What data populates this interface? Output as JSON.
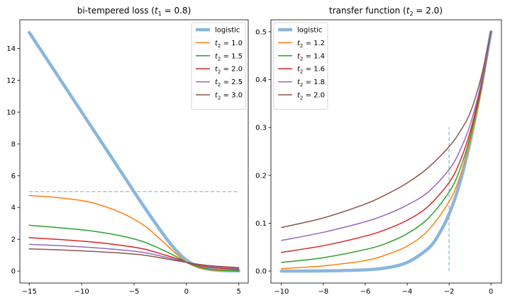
{
  "chart_data": [
    {
      "type": "line",
      "title": "bi-tempered loss",
      "title_subscript_label": "t",
      "title_subscript": "1",
      "title_value": "= 0.8",
      "xlim": [
        -15.9,
        5.9
      ],
      "ylim": [
        -0.75,
        15.8
      ],
      "xticks": [
        -15,
        -10,
        -5,
        0,
        5
      ],
      "yticks": [
        0,
        2,
        4,
        6,
        8,
        10,
        12,
        14
      ],
      "legend_position": "top-right",
      "dashed_reference": {
        "y": 5,
        "x_from": -15,
        "x_to": 5,
        "color": "#1f77b4"
      },
      "series": [
        {
          "name": "logistic",
          "color": "#8ab6dc",
          "x": [
            -15,
            -12,
            -9,
            -6,
            -4,
            -2,
            -1,
            0,
            1,
            2,
            3,
            4,
            5
          ],
          "y": [
            15.0,
            12.0,
            9.0,
            6.0,
            4.0,
            2.13,
            1.31,
            0.69,
            0.31,
            0.13,
            0.05,
            0.02,
            0.01
          ]
        },
        {
          "name": "t2 = 1.0",
          "label": "1.0",
          "color": "#ff7f0e",
          "x": [
            -15,
            -12,
            -9,
            -6,
            -4,
            -3,
            -2,
            -1,
            0,
            1,
            2,
            3,
            5
          ],
          "y": [
            4.75,
            4.6,
            4.3,
            3.6,
            2.85,
            2.3,
            1.7,
            1.1,
            0.55,
            0.25,
            0.1,
            0.04,
            0.0
          ]
        },
        {
          "name": "t2 = 1.5",
          "label": "1.5",
          "color": "#2ca02c",
          "x": [
            -15,
            -12,
            -9,
            -6,
            -4,
            -2,
            -1,
            0,
            1,
            2,
            3,
            5
          ],
          "y": [
            2.88,
            2.72,
            2.52,
            2.18,
            1.82,
            1.25,
            0.92,
            0.55,
            0.3,
            0.15,
            0.07,
            0.02
          ]
        },
        {
          "name": "t2 = 2.0",
          "label": "2.0",
          "color": "#d62728",
          "x": [
            -15,
            -12,
            -9,
            -6,
            -4,
            -2,
            -1,
            0,
            1,
            2,
            3,
            5
          ],
          "y": [
            2.1,
            1.98,
            1.83,
            1.6,
            1.38,
            1.0,
            0.8,
            0.55,
            0.38,
            0.26,
            0.19,
            0.1
          ]
        },
        {
          "name": "t2 = 2.5",
          "label": "2.5",
          "color": "#9467bd",
          "x": [
            -15,
            -12,
            -9,
            -6,
            -4,
            -2,
            -1,
            0,
            1,
            2,
            3,
            5
          ],
          "y": [
            1.68,
            1.6,
            1.48,
            1.32,
            1.16,
            0.88,
            0.72,
            0.55,
            0.42,
            0.32,
            0.26,
            0.16
          ]
        },
        {
          "name": "t2 = 3.0",
          "label": "3.0",
          "color": "#8c564b",
          "x": [
            -15,
            -12,
            -9,
            -6,
            -4,
            -2,
            -1,
            0,
            1,
            2,
            3,
            5
          ],
          "y": [
            1.4,
            1.33,
            1.24,
            1.12,
            1.0,
            0.78,
            0.66,
            0.55,
            0.44,
            0.36,
            0.3,
            0.22
          ]
        }
      ]
    },
    {
      "type": "line",
      "title": "transfer function",
      "title_subscript_label": "t",
      "title_subscript": "2",
      "title_value": "= 2.0",
      "xlim": [
        -10.5,
        0.5
      ],
      "ylim": [
        -0.025,
        0.525
      ],
      "xticks": [
        -10,
        -8,
        -6,
        -4,
        -2,
        0
      ],
      "yticks": [
        0.0,
        0.1,
        0.2,
        0.3,
        0.4,
        0.5
      ],
      "legend_position": "top-left",
      "dashed_reference": {
        "x": -2,
        "y_from": 0,
        "y_to": 0.3,
        "color": "#1f77b4"
      },
      "series": [
        {
          "name": "logistic",
          "color": "#8ab6dc",
          "x": [
            -10,
            -8,
            -6,
            -5,
            -4,
            -3,
            -2.5,
            -2,
            -1.5,
            -1,
            -0.5,
            0
          ],
          "y": [
            0.0,
            0.0003,
            0.0025,
            0.0067,
            0.018,
            0.047,
            0.076,
            0.119,
            0.182,
            0.269,
            0.378,
            0.5
          ]
        },
        {
          "name": "t2 = 1.2",
          "label": "1.2",
          "color": "#ff7f0e",
          "x": [
            -10,
            -8,
            -6,
            -5,
            -4,
            -3,
            -2,
            -1.5,
            -1,
            -0.5,
            0
          ],
          "y": [
            0.005,
            0.011,
            0.022,
            0.034,
            0.052,
            0.085,
            0.145,
            0.195,
            0.27,
            0.37,
            0.5
          ]
        },
        {
          "name": "t2 = 1.4",
          "label": "1.4",
          "color": "#2ca02c",
          "x": [
            -10,
            -8,
            -6,
            -5,
            -4,
            -3,
            -2,
            -1.5,
            -1,
            -0.5,
            0
          ],
          "y": [
            0.018,
            0.028,
            0.045,
            0.058,
            0.078,
            0.11,
            0.165,
            0.21,
            0.28,
            0.375,
            0.5
          ]
        },
        {
          "name": "t2 = 1.6",
          "label": "1.6",
          "color": "#d62728",
          "x": [
            -10,
            -8,
            -6,
            -5,
            -4,
            -3,
            -2,
            -1.5,
            -1,
            -0.5,
            0
          ],
          "y": [
            0.039,
            0.053,
            0.073,
            0.087,
            0.106,
            0.135,
            0.185,
            0.227,
            0.29,
            0.38,
            0.5
          ]
        },
        {
          "name": "t2 = 1.8",
          "label": "1.8",
          "color": "#9467bd",
          "x": [
            -10,
            -8,
            -6,
            -5,
            -4,
            -3,
            -2,
            -1.5,
            -1,
            -0.5,
            0
          ],
          "y": [
            0.064,
            0.081,
            0.103,
            0.118,
            0.138,
            0.165,
            0.212,
            0.25,
            0.305,
            0.387,
            0.5
          ]
        },
        {
          "name": "t2 = 2.0",
          "label": "2.0",
          "color": "#8c564b",
          "x": [
            -10,
            -8,
            -6,
            -5,
            -4,
            -3,
            -2,
            -1.5,
            -1,
            -0.5,
            0
          ],
          "y": [
            0.091,
            0.111,
            0.14,
            0.16,
            0.184,
            0.216,
            0.26,
            0.29,
            0.33,
            0.4,
            0.5
          ]
        }
      ]
    }
  ]
}
